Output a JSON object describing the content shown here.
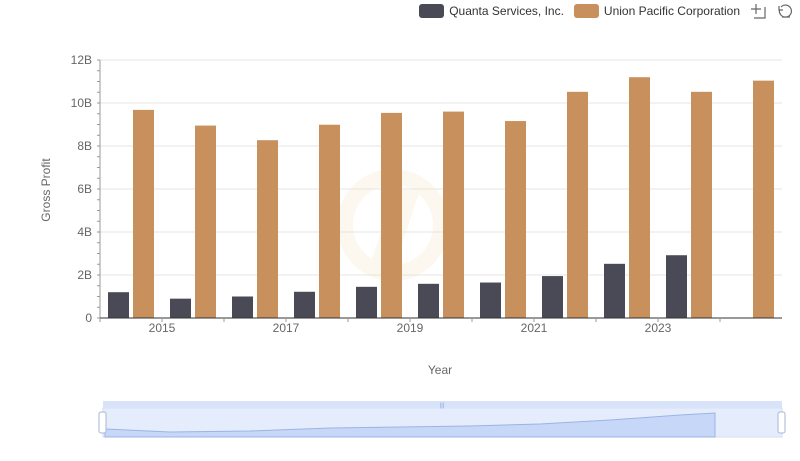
{
  "legend": {
    "items": [
      {
        "label": "Quanta Services, Inc.",
        "color": "#4a4a56"
      },
      {
        "label": "Union Pacific Corporation",
        "color": "#c8905d"
      }
    ]
  },
  "toolbox": {
    "icons": [
      "zoom-icon",
      "restore-icon"
    ]
  },
  "chart_data": {
    "type": "bar",
    "xlabel": "Year",
    "ylabel": "Gross Profit",
    "ylim": [
      0,
      12000000000
    ],
    "yticks": [
      "0",
      "2B",
      "4B",
      "6B",
      "8B",
      "10B",
      "12B"
    ],
    "categories": [
      "2014",
      "2015",
      "2016",
      "2017",
      "2018",
      "2019",
      "2020",
      "2021",
      "2022",
      "2023",
      "2024"
    ],
    "xtick_labels": [
      "2015",
      "2017",
      "2019",
      "2021",
      "2023"
    ],
    "grid": true,
    "legend_position": "top-right",
    "series": [
      {
        "name": "Quanta Services, Inc.",
        "color": "#4a4a56",
        "values": [
          1200000000,
          900000000,
          1000000000,
          1220000000,
          1450000000,
          1590000000,
          1650000000,
          1950000000,
          2520000000,
          2920000000,
          null
        ]
      },
      {
        "name": "Union Pacific Corporation",
        "color": "#c8905d",
        "values": [
          9680000000,
          8950000000,
          8270000000,
          8990000000,
          9540000000,
          9600000000,
          9160000000,
          10520000000,
          11200000000,
          10520000000,
          11040000000
        ]
      }
    ]
  }
}
